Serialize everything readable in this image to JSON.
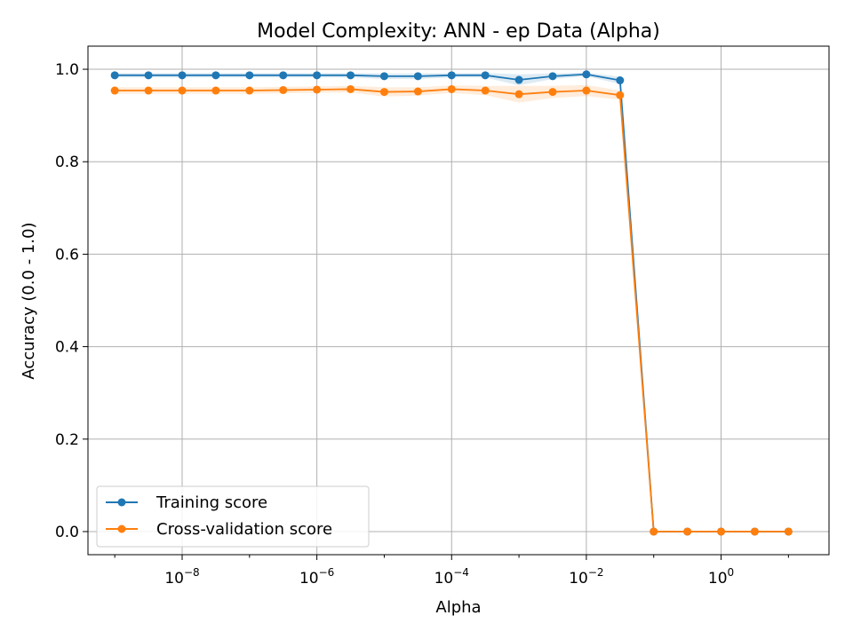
{
  "chart_data": {
    "type": "line",
    "title": "Model Complexity: ANN - ep Data (Alpha)",
    "xlabel": "Alpha",
    "ylabel": "Accuracy (0.0 - 1.0)",
    "x_scale": "log",
    "xlim": [
      4e-10,
      40
    ],
    "ylim": [
      -0.05,
      1.05
    ],
    "x_ticks": [
      {
        "value": 1e-08,
        "base": "10",
        "exp": "−8"
      },
      {
        "value": 1e-06,
        "base": "10",
        "exp": "−6"
      },
      {
        "value": 0.0001,
        "base": "10",
        "exp": "−4"
      },
      {
        "value": 0.01,
        "base": "10",
        "exp": "−2"
      },
      {
        "value": 1,
        "base": "10",
        "exp": "0"
      }
    ],
    "y_ticks": [
      "0.0",
      "0.2",
      "0.4",
      "0.6",
      "0.8",
      "1.0"
    ],
    "grid": true,
    "legend_position": "lower-left",
    "x": [
      1e-09,
      3.162e-09,
      1e-08,
      3.162e-08,
      1e-07,
      3.162e-07,
      1e-06,
      3.162e-06,
      1e-05,
      3.162e-05,
      0.0001,
      0.0003162,
      0.001,
      0.003162,
      0.01,
      0.03162,
      0.1,
      0.3162,
      1,
      3.162,
      10
    ],
    "series": [
      {
        "name": "Training score",
        "color": "#1f77b4",
        "values": [
          0.987,
          0.987,
          0.987,
          0.987,
          0.987,
          0.987,
          0.987,
          0.987,
          0.985,
          0.985,
          0.987,
          0.987,
          0.977,
          0.985,
          0.989,
          0.976,
          0.0,
          0.0,
          0.0,
          0.0,
          0.0
        ],
        "band": [
          0.005,
          0.005,
          0.005,
          0.005,
          0.005,
          0.005,
          0.005,
          0.005,
          0.006,
          0.006,
          0.005,
          0.005,
          0.012,
          0.006,
          0.004,
          0.008,
          0.0,
          0.0,
          0.0,
          0.0,
          0.0
        ]
      },
      {
        "name": "Cross-validation score",
        "color": "#ff7f0e",
        "values": [
          0.954,
          0.954,
          0.954,
          0.954,
          0.954,
          0.955,
          0.956,
          0.957,
          0.951,
          0.952,
          0.957,
          0.954,
          0.946,
          0.951,
          0.954,
          0.944,
          0.0,
          0.0,
          0.0,
          0.0,
          0.0
        ],
        "band": [
          0.007,
          0.007,
          0.007,
          0.007,
          0.007,
          0.007,
          0.007,
          0.007,
          0.01,
          0.009,
          0.008,
          0.01,
          0.018,
          0.013,
          0.012,
          0.01,
          0.0,
          0.0,
          0.0,
          0.0,
          0.0
        ]
      }
    ]
  }
}
